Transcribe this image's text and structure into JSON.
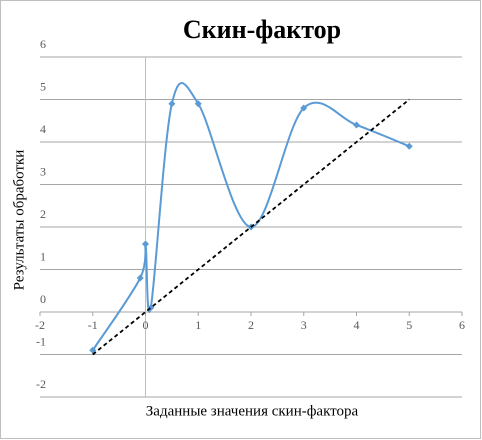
{
  "chart_data": {
    "type": "line",
    "title": "Скин-фактор",
    "x_label": "Заданные значения скин-фактора",
    "y_label": "Результаты обработки",
    "xlim": [
      -2,
      6
    ],
    "xticks": [
      -2,
      -1,
      0,
      1,
      2,
      3,
      4,
      5,
      6
    ],
    "ylim": [
      -2,
      6
    ],
    "yticks": [
      -2,
      -1,
      0,
      1,
      2,
      3,
      4,
      5,
      6
    ],
    "grid": true,
    "series": [
      {
        "color": "#5b9bd5",
        "smooth": true,
        "marker": true,
        "line_style": "solid",
        "x": [
          -1,
          -0.1,
          0,
          0.1,
          0.5,
          1,
          2,
          3,
          4,
          5
        ],
        "values": [
          -0.9,
          0.8,
          1.6,
          0.1,
          4.9,
          4.9,
          2,
          4.8,
          4.4,
          3.9
        ]
      },
      {
        "color": "#000000",
        "smooth": false,
        "marker": false,
        "line_style": "dashed",
        "x": [
          -1,
          5
        ],
        "values": [
          -1,
          5
        ]
      }
    ]
  }
}
